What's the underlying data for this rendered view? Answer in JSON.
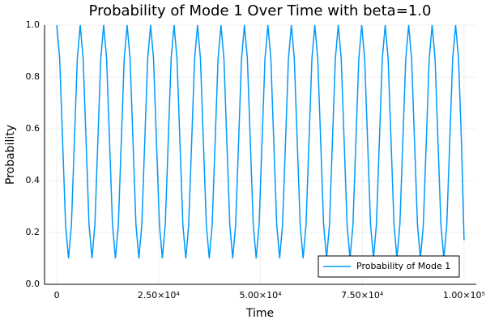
{
  "chart_data": {
    "type": "line",
    "title": "Probability of Mode 1 Over Time with beta=1.0",
    "x_label": "Time",
    "y_label": "Probability",
    "x": [
      0,
      720,
      1440,
      2160,
      2880,
      3600,
      4320,
      5040,
      5760,
      6480,
      7200,
      7920,
      8640,
      9360,
      10080,
      10800,
      11520,
      12240,
      12960,
      13680,
      14400,
      15120,
      15840,
      16560,
      17280,
      18000,
      18720,
      19440,
      20160,
      20880,
      21600,
      22320,
      23040,
      23760,
      24480,
      25200,
      25920,
      26640,
      27360,
      28080,
      28800,
      29520,
      30240,
      30960,
      31680,
      32400,
      33120,
      33840,
      34560,
      35280,
      36000,
      36720,
      37440,
      38160,
      38880,
      39600,
      40320,
      41040,
      41760,
      42480,
      43200,
      43920,
      44640,
      45360,
      46080,
      46800,
      47520,
      48240,
      48960,
      49680,
      50400,
      51120,
      51840,
      52560,
      53280,
      54000,
      54720,
      55440,
      56160,
      56880,
      57600,
      58320,
      59040,
      59760,
      60480,
      61200,
      61920,
      62640,
      63360,
      64080,
      64800,
      65520,
      66240,
      66960,
      67680,
      68400,
      69120,
      69840,
      70560,
      71280,
      72000,
      72720,
      73440,
      74160,
      74880,
      75600,
      76320,
      77040,
      77760,
      78480,
      79200,
      79920,
      80640,
      81360,
      82080,
      82800,
      83520,
      84240,
      84960,
      85680,
      86400,
      87120,
      87840,
      88560,
      89280,
      90000,
      90720,
      91440,
      92160,
      92880,
      93600,
      94320,
      95040,
      95760,
      96480,
      97200,
      97920,
      98640,
      99360,
      100000
    ],
    "series": [
      {
        "name": "Probability of Mode 1",
        "color": "#009af9",
        "values": [
          1.0,
          0.87,
          0.55,
          0.23,
          0.1,
          0.23,
          0.55,
          0.87,
          1.0,
          0.87,
          0.55,
          0.23,
          0.1,
          0.23,
          0.55,
          0.87,
          1.0,
          0.87,
          0.55,
          0.23,
          0.1,
          0.23,
          0.55,
          0.87,
          1.0,
          0.87,
          0.55,
          0.23,
          0.1,
          0.23,
          0.55,
          0.87,
          1.0,
          0.87,
          0.55,
          0.23,
          0.1,
          0.23,
          0.55,
          0.87,
          1.0,
          0.87,
          0.55,
          0.23,
          0.1,
          0.23,
          0.55,
          0.87,
          1.0,
          0.87,
          0.55,
          0.23,
          0.1,
          0.23,
          0.55,
          0.87,
          1.0,
          0.87,
          0.55,
          0.23,
          0.1,
          0.23,
          0.55,
          0.87,
          1.0,
          0.87,
          0.55,
          0.23,
          0.1,
          0.23,
          0.55,
          0.87,
          1.0,
          0.87,
          0.55,
          0.23,
          0.1,
          0.23,
          0.55,
          0.87,
          1.0,
          0.87,
          0.55,
          0.23,
          0.1,
          0.23,
          0.55,
          0.87,
          1.0,
          0.87,
          0.55,
          0.23,
          0.1,
          0.23,
          0.55,
          0.87,
          1.0,
          0.87,
          0.55,
          0.23,
          0.1,
          0.23,
          0.55,
          0.87,
          1.0,
          0.87,
          0.55,
          0.23,
          0.1,
          0.23,
          0.55,
          0.87,
          1.0,
          0.87,
          0.55,
          0.23,
          0.1,
          0.23,
          0.55,
          0.87,
          1.0,
          0.87,
          0.55,
          0.23,
          0.1,
          0.23,
          0.55,
          0.87,
          1.0,
          0.87,
          0.55,
          0.23,
          0.1,
          0.23,
          0.55,
          0.87,
          1.0,
          0.87,
          0.55,
          0.17
        ]
      }
    ],
    "xlim": [
      -3000,
      103000
    ],
    "xticks": [
      0,
      {
        "value": 25000,
        "label": "2.50×10⁴"
      },
      {
        "value": 50000,
        "label": "5.00×10⁴"
      },
      {
        "value": 75000,
        "label": "7.50×10⁴"
      },
      {
        "value": 100000,
        "label": "1.00×10⁵"
      }
    ],
    "ylim": [
      0,
      1
    ],
    "yticks": [
      {
        "value": 0,
        "label": "0.0"
      },
      0.2,
      0.4,
      0.6,
      0.8,
      {
        "value": 1,
        "label": "1.0"
      }
    ],
    "grid": true,
    "legend": "bottom-right"
  }
}
